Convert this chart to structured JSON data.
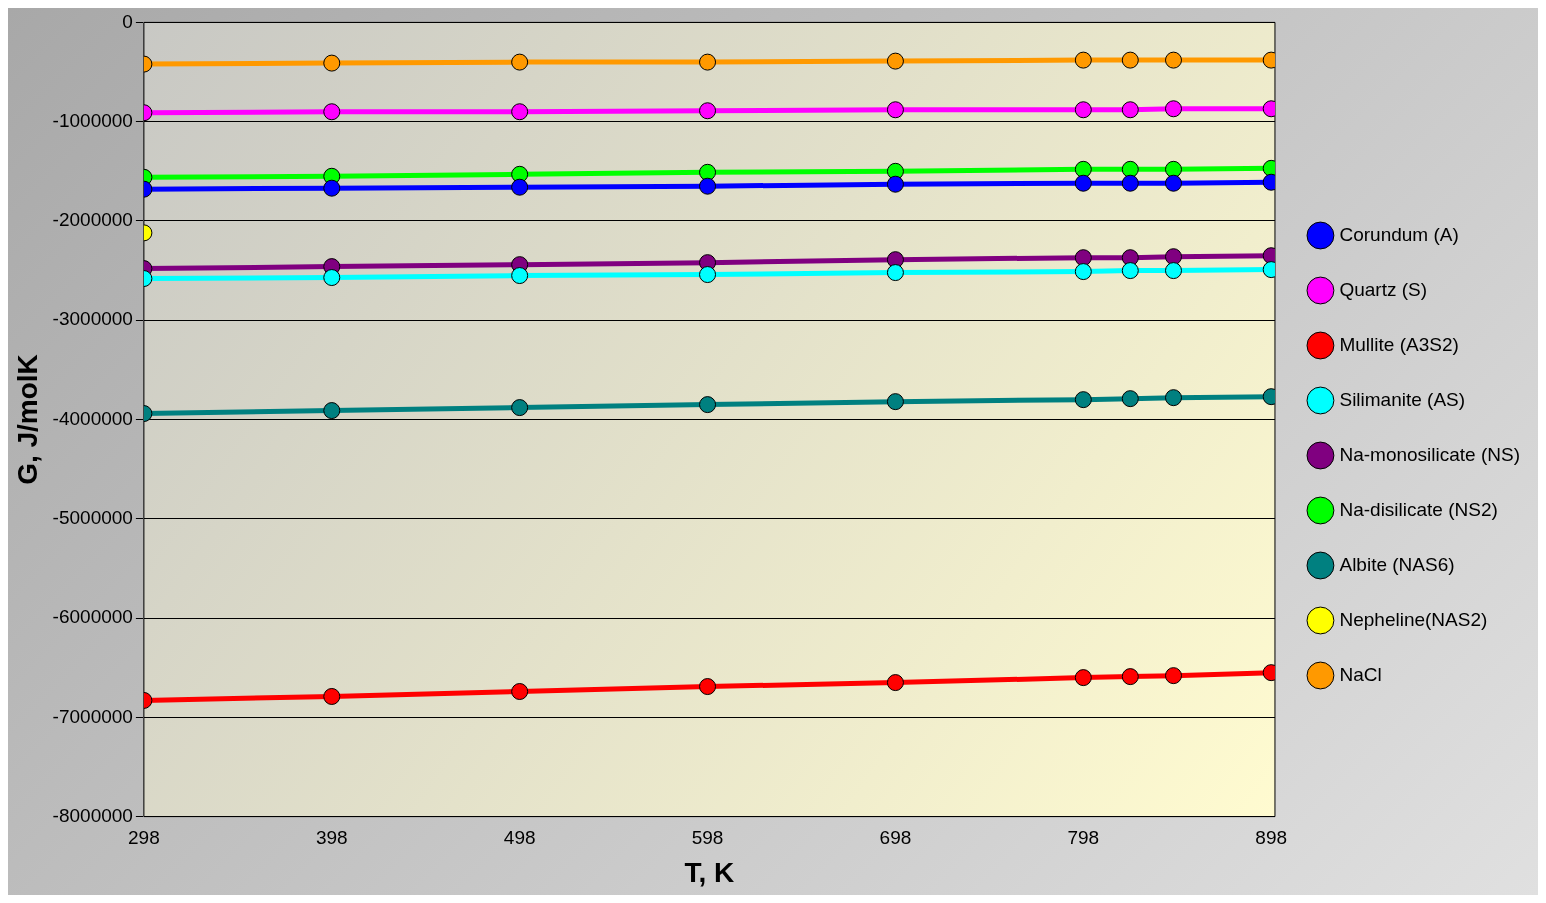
{
  "chart_data": {
    "type": "line",
    "xlabel": "T, K",
    "ylabel": "G, J/molK",
    "x": [
      298,
      398,
      498,
      598,
      698,
      798,
      823,
      846,
      898
    ],
    "series": [
      {
        "name": "Corundum (A)",
        "color": "#0000ff",
        "values": [
          -1680000,
          -1670000,
          -1660000,
          -1650000,
          -1630000,
          -1620000,
          -1620000,
          -1620000,
          -1610000
        ]
      },
      {
        "name": "Quartz (S)",
        "color": "#ff00ff",
        "values": [
          -910000,
          -900000,
          -900000,
          -890000,
          -880000,
          -880000,
          -880000,
          -870000,
          -870000
        ]
      },
      {
        "name": "Mullite (A3S2)",
        "color": "#ff0000",
        "values": [
          -6830000,
          -6790000,
          -6740000,
          -6690000,
          -6650000,
          -6600000,
          -6590000,
          -6580000,
          -6550000
        ]
      },
      {
        "name": "Silimanite (AS)",
        "color": "#00ffff",
        "values": [
          -2580000,
          -2570000,
          -2550000,
          -2540000,
          -2520000,
          -2510000,
          -2500000,
          -2500000,
          -2490000
        ]
      },
      {
        "name": "Na-monosilicate (NS)",
        "color": "#800080",
        "values": [
          -2480000,
          -2460000,
          -2440000,
          -2420000,
          -2390000,
          -2370000,
          -2370000,
          -2360000,
          -2350000
        ]
      },
      {
        "name": "Na-disilicate (NS2)",
        "color": "#00ff00",
        "values": [
          -1560000,
          -1550000,
          -1530000,
          -1510000,
          -1500000,
          -1480000,
          -1480000,
          -1480000,
          -1470000
        ]
      },
      {
        "name": "Albite (NAS6)",
        "color": "#008080",
        "values": [
          -3940000,
          -3910000,
          -3880000,
          -3850000,
          -3820000,
          -3800000,
          -3790000,
          -3780000,
          -3770000
        ]
      },
      {
        "name": "Nepheline(NAS2)",
        "color": "#ffff00",
        "x": [
          298
        ],
        "values": [
          -2120000
        ]
      },
      {
        "name": "NaCl",
        "color": "#ff9900",
        "values": [
          -420000,
          -410000,
          -400000,
          -400000,
          -390000,
          -380000,
          -380000,
          -380000,
          -380000
        ]
      }
    ],
    "xlim": [
      298,
      900
    ],
    "xticks": [
      298,
      398,
      498,
      598,
      698,
      798,
      898
    ],
    "ylim": [
      -8000000,
      0
    ],
    "yticks": [
      -8000000,
      -7000000,
      -6000000,
      -5000000,
      -4000000,
      -3000000,
      -2000000,
      -1000000,
      0
    ],
    "grid": "y",
    "legend": "right",
    "marker": "circle",
    "line_style": "solid"
  }
}
